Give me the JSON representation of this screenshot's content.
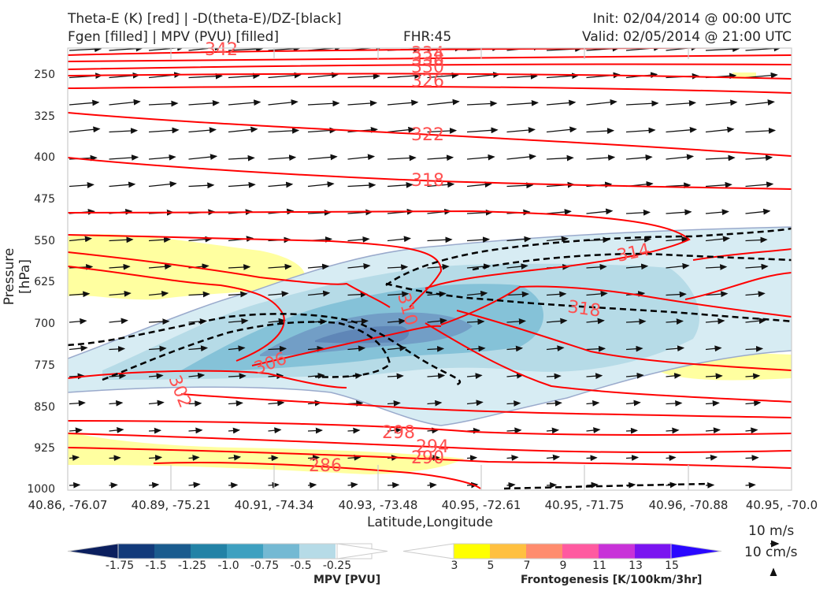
{
  "header": {
    "title_line1": "Theta-E (K) [red] | -D(theta-E)/DZ-[black]",
    "title_line2": "Fgen [filled] | MPV (PVU) [filled]",
    "fhr": "FHR:45",
    "init": "Init: 02/04/2014 @ 00:00 UTC",
    "valid": "Valid: 02/05/2014 @ 21:00 UTC"
  },
  "chart_data": {
    "type": "cross-section",
    "ylabel": "Pressure [hPa]",
    "xlabel": "Latitude,Longitude",
    "y_axis": {
      "ticks": [
        "250",
        "325",
        "400",
        "475",
        "550",
        "625",
        "700",
        "775",
        "850",
        "925",
        "1000"
      ],
      "inverted": true
    },
    "x_axis": {
      "ticks": [
        "40.86, -76.07",
        "40.89, -75.21",
        "40.91, -74.34",
        "40.93, -73.48",
        "40.95, -72.61",
        "40.95, -71.75",
        "40.96, -70.88",
        "40.95, -70.0"
      ]
    },
    "theta_e_contours": {
      "color": "#ff0000",
      "labels": [
        "342",
        "334",
        "338",
        "330",
        "326",
        "322",
        "318",
        "314",
        "310",
        "306",
        "302",
        "318",
        "298",
        "294",
        "290",
        "286"
      ]
    },
    "mpv_colorbar": {
      "label": "MPV [PVU]",
      "ticks": [
        "-1.75",
        "-1.5",
        "-1.25",
        "-1.0",
        "-0.75",
        "-0.5",
        "-0.25"
      ],
      "colors": [
        "#0b1f5e",
        "#123a7a",
        "#1a5b8e",
        "#2382a6",
        "#3ea0c0",
        "#74b9d3",
        "#b6dbe7",
        "#ffffff"
      ]
    },
    "fgen_colorbar": {
      "label": "Frontogenesis [K/100km/3hr]",
      "ticks": [
        "3",
        "5",
        "7",
        "9",
        "11",
        "13",
        "15"
      ],
      "colors": [
        "#ffffff",
        "#ffff00",
        "#ffc040",
        "#ff8c6e",
        "#ff5aa0",
        "#c832d8",
        "#7a14f0",
        "#2a08ff"
      ]
    },
    "wind_reference": {
      "u_label": "10 m/s",
      "w_label": "10 cm/s"
    }
  }
}
